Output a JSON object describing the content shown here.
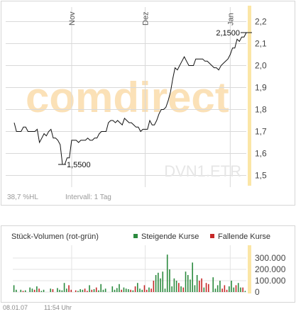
{
  "chart_data": [
    {
      "type": "line",
      "title": "",
      "symbol": "DVN1.ETR",
      "watermark": "comdirect",
      "x_ticks": [
        "Nov",
        "Dez",
        "Jan"
      ],
      "ylim": [
        1.45,
        2.25
      ],
      "y_ticks": [
        "2,2",
        "2,1",
        "2,0",
        "1,9",
        "1,8",
        "1,7",
        "1,6",
        "1,5"
      ],
      "y_tick_values": [
        2.2,
        2.1,
        2.0,
        1.9,
        1.8,
        1.7,
        1.6,
        1.5
      ],
      "x_tick_index": [
        25,
        57,
        94
      ],
      "y": [
        1.74,
        1.7,
        1.7,
        1.7,
        1.72,
        1.72,
        1.7,
        1.7,
        1.7,
        1.7,
        1.71,
        1.65,
        1.67,
        1.69,
        1.68,
        1.7,
        1.71,
        1.67,
        1.67,
        1.66,
        1.64,
        1.55,
        1.55,
        1.58,
        1.58,
        1.66,
        1.66,
        1.66,
        1.65,
        1.66,
        1.66,
        1.66,
        1.67,
        1.66,
        1.66,
        1.67,
        1.67,
        1.69,
        1.7,
        1.7,
        1.7,
        1.74,
        1.75,
        1.75,
        1.74,
        1.75,
        1.74,
        1.73,
        1.76,
        1.75,
        1.74,
        1.74,
        1.73,
        1.72,
        1.72,
        1.7,
        1.71,
        1.71,
        1.71,
        1.75,
        1.73,
        1.73,
        1.75,
        1.78,
        1.8,
        1.8,
        1.81,
        1.84,
        1.88,
        1.94,
        1.99,
        1.98,
        2.0,
        2.02,
        2.04,
        2.02,
        2.0,
        2.0,
        2.0,
        2.03,
        2.03,
        2.03,
        2.03,
        2.02,
        2.02,
        2.01,
        2.0,
        1.99,
        1.99,
        1.98,
        2.0,
        2.01,
        2.02,
        2.03,
        2.05,
        2.08,
        2.08,
        2.12,
        2.11,
        2.13,
        2.13,
        2.15
      ],
      "annotations": [
        {
          "label": "2,1500",
          "index": 101,
          "value": 2.15,
          "kind": "max"
        },
        {
          "label": "1,5500",
          "index": 21,
          "value": 1.55,
          "kind": "min"
        }
      ],
      "footer_left": "38,7 %HL",
      "footer_interval": "Intervall: 1 Tag",
      "colors": {
        "line": "#111111",
        "grid": "#d9d9d9",
        "highlight": "#fbe6a6",
        "watermark_orange": "#fad7a0",
        "watermark_gray": "#e6e6e6"
      }
    },
    {
      "type": "bar",
      "title": "Stück-Volumen (rot-grün)",
      "series": [
        {
          "name": "Steigende Kurse",
          "color": "#2b8a3e"
        },
        {
          "name": "Fallende Kurse",
          "color": "#c62828"
        }
      ],
      "ylim": [
        0,
        400000
      ],
      "y_ticks": [
        "300.000",
        "200.000",
        "100.000",
        "0"
      ],
      "y_tick_values": [
        300000,
        200000,
        100000,
        0
      ],
      "values": [
        60000,
        20000,
        0,
        20000,
        10000,
        15000,
        0,
        40000,
        30000,
        20000,
        50000,
        30000,
        10000,
        20000,
        0,
        0,
        30000,
        25000,
        0,
        35000,
        20000,
        15000,
        80000,
        30000,
        60000,
        20000,
        0,
        15000,
        10000,
        25000,
        20000,
        30000,
        10000,
        60000,
        20000,
        25000,
        40000,
        15000,
        70000,
        20000,
        30000,
        0,
        0,
        50000,
        20000,
        35000,
        70000,
        20000,
        40000,
        30000,
        25000,
        20000,
        15000,
        50000,
        80000,
        30000,
        20000,
        60000,
        20000,
        40000,
        30000,
        100000,
        150000,
        170000,
        120000,
        180000,
        30000,
        330000,
        200000,
        50000,
        120000,
        100000,
        80000,
        50000,
        40000,
        180000,
        150000,
        110000,
        260000,
        60000,
        150000,
        100000,
        120000,
        40000,
        80000,
        70000,
        0,
        130000,
        30000,
        60000,
        100000,
        30000,
        60000,
        20000,
        50000,
        100000,
        40000,
        60000,
        80000,
        40000,
        40000,
        10000
      ],
      "direction": [
        "up",
        "up",
        "down",
        "up",
        "down",
        "up",
        "down",
        "up",
        "up",
        "down",
        "up",
        "down",
        "up",
        "up",
        "up",
        "up",
        "up",
        "down",
        "up",
        "up",
        "up",
        "up",
        "up",
        "up",
        "down",
        "down",
        "up",
        "down",
        "up",
        "up",
        "up",
        "down",
        "down",
        "up",
        "down",
        "up",
        "down",
        "up",
        "up",
        "up",
        "up",
        "up",
        "down",
        "up",
        "up",
        "up",
        "up",
        "down",
        "up",
        "up",
        "up",
        "down",
        "up",
        "down",
        "up",
        "up",
        "up",
        "down",
        "down",
        "up",
        "down",
        "down",
        "up",
        "up",
        "up",
        "up",
        "up",
        "up",
        "up",
        "up",
        "up",
        "up",
        "down",
        "up",
        "down",
        "up",
        "up",
        "up",
        "up",
        "up",
        "up",
        "down",
        "down",
        "up",
        "down",
        "down",
        "up",
        "up",
        "up",
        "up",
        "up",
        "down",
        "down",
        "down",
        "up",
        "up",
        "up",
        "down",
        "up",
        "up",
        "down",
        "up"
      ],
      "footer_date": "08.01.07",
      "footer_time": "11:54 Uhr"
    }
  ]
}
